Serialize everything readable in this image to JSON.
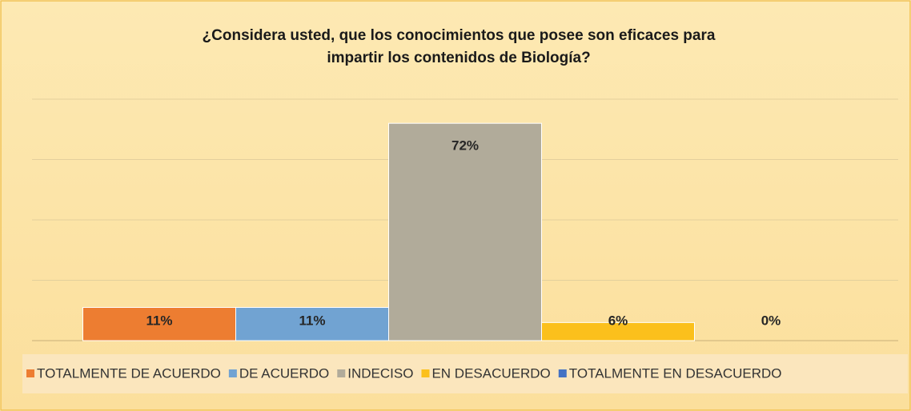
{
  "chart_data": {
    "type": "bar",
    "title": [
      "¿Considera usted, que los conocimientos que posee son eficaces para",
      "impartir los contenidos de Biología?"
    ],
    "series": [
      {
        "name": "TOTALMENTE DE ACUERDO",
        "color": "#ed7d31",
        "values": [
          11
        ],
        "value_labels": [
          "11%"
        ]
      },
      {
        "name": "DE ACUERDO",
        "color": "#71a3d2",
        "values": [
          11
        ],
        "value_labels": [
          "11%"
        ]
      },
      {
        "name": "INDECISO",
        "color": "#b1ab9a",
        "values": [
          72
        ],
        "value_labels": [
          "72%"
        ]
      },
      {
        "name": "EN DESACUERDO",
        "color": "#fbc01c",
        "values": [
          6
        ],
        "value_labels": [
          "6%"
        ]
      },
      {
        "name": "TOTALMENTE EN DESACUERDO",
        "color": "#4472c4",
        "values": [
          0
        ],
        "value_labels": [
          "0%"
        ]
      }
    ],
    "ylim": [
      0,
      80
    ],
    "yticks": [
      0,
      20,
      40,
      60,
      80
    ],
    "grid": true,
    "legend": "bottom"
  }
}
